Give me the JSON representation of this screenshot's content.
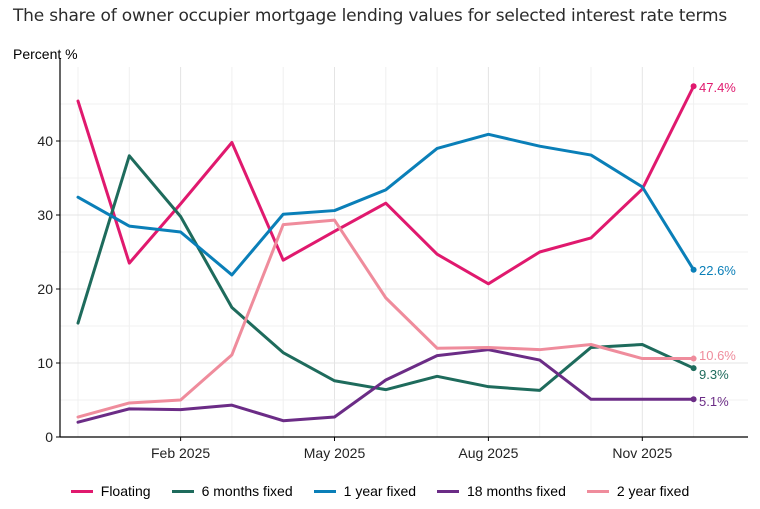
{
  "chart_data": {
    "type": "line",
    "title": "The share of owner occupier mortgage lending values for selected interest rate terms",
    "ylabel": "Percent %",
    "xlabel": "",
    "ylim": [
      0,
      50
    ],
    "yticks": [
      0,
      10,
      20,
      30,
      40
    ],
    "xticks": [
      "Feb 2025",
      "May 2025",
      "Aug 2025",
      "Nov 2025"
    ],
    "x": [
      "Dec 2024",
      "Jan 2025",
      "Feb 2025",
      "Mar 2025",
      "Apr 2025",
      "May 2025",
      "Jun 2025",
      "Jul 2025",
      "Aug 2025",
      "Sep 2025",
      "Oct 2025",
      "Nov 2025",
      "Dec 2025"
    ],
    "grid": true,
    "legend_position": "bottom",
    "series": [
      {
        "name": "Floating",
        "color": "#e0196e",
        "label": "47.4%",
        "values": [
          45.4,
          23.5,
          31.5,
          39.8,
          23.9,
          27.8,
          31.6,
          24.7,
          20.7,
          25.0,
          26.9,
          33.5,
          47.4
        ]
      },
      {
        "name": "6 months fixed",
        "color": "#1e6b5c",
        "label": "9.3%",
        "values": [
          15.4,
          38.0,
          29.8,
          17.5,
          11.4,
          7.6,
          6.4,
          8.2,
          6.8,
          6.3,
          12.1,
          12.5,
          9.3
        ]
      },
      {
        "name": "1 year fixed",
        "color": "#0a7fb8",
        "label": "22.6%",
        "values": [
          32.4,
          28.5,
          27.7,
          21.9,
          30.1,
          30.6,
          33.4,
          39.0,
          40.9,
          39.3,
          38.1,
          33.8,
          22.6
        ]
      },
      {
        "name": "18 months fixed",
        "color": "#6b2c86",
        "label": "5.1%",
        "values": [
          2.0,
          3.8,
          3.7,
          4.3,
          2.2,
          2.7,
          7.7,
          11.0,
          11.8,
          10.4,
          5.1,
          5.1,
          5.1
        ]
      },
      {
        "name": "2 year fixed",
        "color": "#ef8c9c",
        "label": "10.6%",
        "values": [
          2.7,
          4.6,
          5.0,
          11.1,
          28.7,
          29.3,
          18.8,
          12.0,
          12.1,
          11.8,
          12.5,
          10.6,
          10.6
        ]
      }
    ]
  }
}
